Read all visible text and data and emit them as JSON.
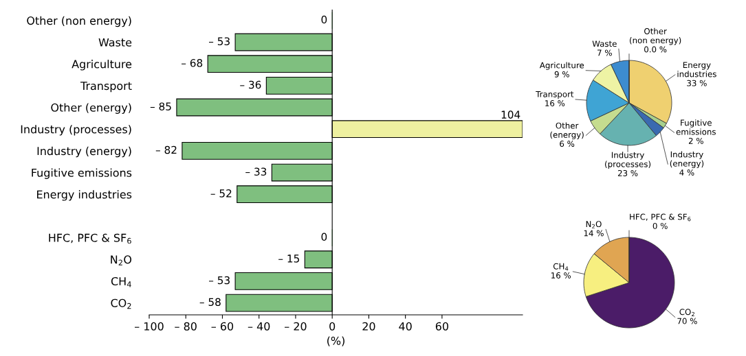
{
  "chart_data": [
    {
      "type": "bar",
      "orientation": "horizontal",
      "xlabel": "(%)",
      "categories": [
        "Other (non energy)",
        "Waste",
        "Agriculture",
        "Transport",
        "Other (energy)",
        "Industry (processes)",
        "Industry (energy)",
        "Fugitive emissions",
        "Energy industries",
        null,
        "HFC, PFC & SF$_{6}$",
        "N$_{2}$O",
        "CH$_{4}$",
        "CO$_{2}$"
      ],
      "values": [
        0,
        -53,
        -68,
        -36,
        -85,
        104,
        -82,
        -33,
        -52,
        null,
        0,
        -15,
        -53,
        -58
      ],
      "colors": [
        "#7fbf7f",
        "#7fbf7f",
        "#7fbf7f",
        "#7fbf7f",
        "#7fbf7f",
        "#eef0a0",
        "#7fbf7f",
        "#7fbf7f",
        "#7fbf7f",
        "#7fbf7f",
        "#7fbf7f",
        "#7fbf7f",
        "#7fbf7f",
        "#7fbf7f"
      ],
      "value_labels": [
        "0",
        "– 53",
        "– 68",
        "– 36",
        "– 85",
        "104",
        "– 82",
        "– 33",
        "– 52",
        null,
        "0",
        "– 15",
        "– 53",
        "– 58"
      ],
      "xlim": [
        -100,
        104
      ],
      "xticks": [
        {
          "value": -100,
          "label": "– 100"
        },
        {
          "value": -80,
          "label": "– 80"
        },
        {
          "value": -60,
          "label": "– 60"
        },
        {
          "value": -40,
          "label": "– 40"
        },
        {
          "value": -20,
          "label": "– 20"
        },
        0,
        20,
        40,
        60
      ],
      "ref_lines": [
        {
          "axis": "x",
          "value": 0,
          "color": "#000000"
        }
      ]
    },
    {
      "type": "pie",
      "categories": [
        "Energy\nindustries",
        "Fugitive\nemissions",
        "Industry\n(energy)",
        "Industry\n(processes)",
        "Other\n(energy)",
        "Transport",
        "Agriculture",
        "Waste",
        "Other\n(non energy)"
      ],
      "values": [
        33,
        2,
        4,
        23,
        6,
        16,
        9,
        7,
        0.0
      ],
      "colors": [
        "#efd070",
        "#a8d08d",
        "#3a6ab0",
        "#66b2b0",
        "#c5dc8f",
        "#3fa4d4",
        "#eef3a4",
        "#3d8ccf",
        "#cccccc"
      ],
      "value_labels": [
        "33 %",
        "2 %",
        "4 %",
        "23 %",
        "6 %",
        "16 %",
        "9 %",
        "7 %",
        "0.0 %"
      ]
    },
    {
      "type": "pie",
      "categories": [
        "CO$_{2}$",
        "CH$_{4}$",
        "N$_{2}$O",
        "HFC, PFC & SF$_{6}$"
      ],
      "values": [
        70,
        16,
        14,
        0
      ],
      "colors": [
        "#4b1c68",
        "#f7ef80",
        "#e0a552",
        "#9a9a9a"
      ],
      "value_labels": [
        "70 %",
        "16 %",
        "14 %",
        "0 %"
      ]
    }
  ]
}
